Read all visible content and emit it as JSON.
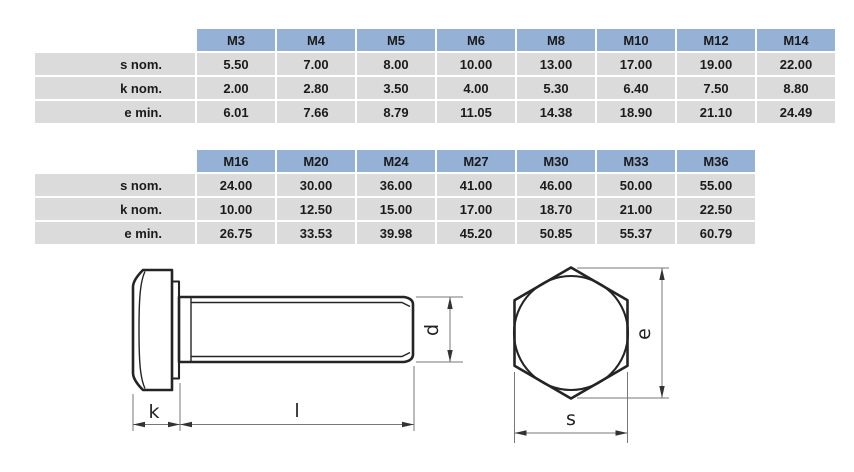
{
  "colors": {
    "header_fill": "#96B1D6",
    "row_fill": "#DBDBDB",
    "table_text": "#1B1B1B",
    "line": "#242424",
    "dim_line": "#777777",
    "arrow": "#333333"
  },
  "chart_data": [
    {
      "type": "table",
      "columns": [
        "M3",
        "M4",
        "M5",
        "M6",
        "M8",
        "M10",
        "M12",
        "M14"
      ],
      "row_labels": [
        "s nom.",
        "k nom.",
        "e min."
      ],
      "rows": [
        [
          "5.50",
          "7.00",
          "8.00",
          "10.00",
          "13.00",
          "17.00",
          "19.00",
          "22.00"
        ],
        [
          "2.00",
          "2.80",
          "3.50",
          "4.00",
          "5.30",
          "6.40",
          "7.50",
          "8.80"
        ],
        [
          "6.01",
          "7.66",
          "8.79",
          "11.05",
          "14.38",
          "18.90",
          "21.10",
          "24.49"
        ]
      ]
    },
    {
      "type": "table",
      "columns": [
        "M16",
        "M20",
        "M24",
        "M27",
        "M30",
        "M33",
        "M36"
      ],
      "row_labels": [
        "s nom.",
        "k nom.",
        "e min."
      ],
      "rows": [
        [
          "24.00",
          "30.00",
          "36.00",
          "41.00",
          "46.00",
          "50.00",
          "55.00"
        ],
        [
          "10.00",
          "12.50",
          "15.00",
          "17.00",
          "18.70",
          "21.00",
          "22.50"
        ],
        [
          "26.75",
          "33.53",
          "39.98",
          "45.20",
          "50.85",
          "55.37",
          "60.79"
        ]
      ]
    }
  ],
  "diagram": {
    "labels": {
      "k": "k",
      "l": "l",
      "d": "d",
      "e": "e",
      "s": "s"
    }
  }
}
